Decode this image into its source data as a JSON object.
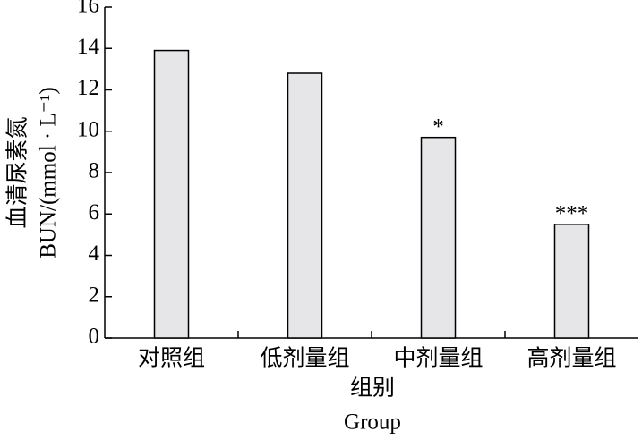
{
  "chart_data": {
    "type": "bar",
    "categories": [
      "对照组",
      "低剂量组",
      "中剂量组",
      "高剂量组"
    ],
    "values": [
      13.9,
      12.8,
      9.7,
      5.5
    ],
    "color": "#e6e6e8",
    "annotations": [
      {
        "category": "中剂量组",
        "text": "*"
      },
      {
        "category": "高剂量组",
        "text": "***"
      }
    ],
    "x_label": [
      "组别",
      "Group"
    ],
    "y_label": [
      "血清尿素氮",
      "BUN/(mmol · L⁻¹)"
    ],
    "ylim": [
      0,
      16
    ],
    "yticks": [
      0,
      2,
      4,
      6,
      8,
      10,
      12,
      14,
      16
    ],
    "grid": false
  }
}
